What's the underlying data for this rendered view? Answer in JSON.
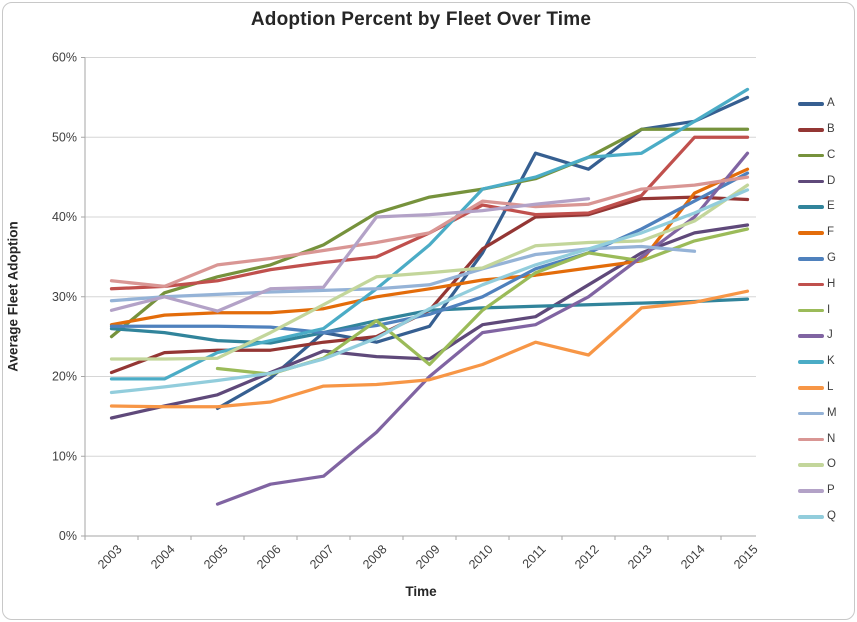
{
  "title": "Adoption Percent by Fleet Over Time",
  "axes": {
    "x_label": "Time",
    "y_label": "Average Fleet Adoption",
    "y_ticks": [
      "0%",
      "10%",
      "20%",
      "30%",
      "40%",
      "50%",
      "60%"
    ],
    "x_ticks": [
      "2003",
      "2004",
      "2005",
      "2006",
      "2007",
      "2008",
      "2009",
      "2010",
      "2011",
      "2012",
      "2013",
      "2014",
      "2015"
    ]
  },
  "styles": {
    "gridline_color": "#d6d6d6",
    "axis_line_color": "#a6a6a6",
    "tick_label_color": "#3f3f3f",
    "title_color": "#262626"
  },
  "chart_data": {
    "type": "line",
    "title": "Adoption Percent by Fleet Over Time",
    "xlabel": "Time",
    "ylabel": "Average Fleet Adoption",
    "x": [
      2003,
      2004,
      2005,
      2006,
      2007,
      2008,
      2009,
      2010,
      2011,
      2012,
      2013,
      2014,
      2015
    ],
    "ylim": [
      0,
      60
    ],
    "y_unit": "percent",
    "grid": "horizontal",
    "legend_position": "right",
    "series": [
      {
        "name": "A",
        "color": "#365F91",
        "values": [
          null,
          null,
          16,
          19.8,
          25.5,
          24.3,
          26.3,
          35.5,
          48,
          46,
          51,
          52,
          55
        ]
      },
      {
        "name": "B",
        "color": "#943634",
        "values": [
          20.5,
          23,
          23.3,
          23.3,
          24.3,
          25,
          28.3,
          36,
          40,
          40.3,
          42.3,
          42.5,
          42.2
        ]
      },
      {
        "name": "C",
        "color": "#76923C",
        "values": [
          25,
          30.5,
          32.5,
          34,
          36.5,
          40.5,
          42.5,
          43.5,
          44.8,
          47.5,
          51,
          51,
          51
        ]
      },
      {
        "name": "D",
        "color": "#5F497A",
        "values": [
          14.8,
          16.3,
          17.7,
          20.5,
          23.2,
          22.5,
          22.2,
          26.5,
          27.5,
          31.5,
          35.5,
          38,
          39
        ]
      },
      {
        "name": "E",
        "color": "#31849B",
        "values": [
          26,
          25.5,
          24.5,
          24.2,
          25.5,
          27,
          28.3,
          28.6,
          28.8,
          29,
          29.2,
          29.4,
          29.7
        ]
      },
      {
        "name": "F",
        "color": "#E36C0A",
        "values": [
          26.5,
          27.7,
          28,
          28,
          28.5,
          30,
          31,
          32.1,
          32.7,
          33.6,
          34.5,
          43,
          46
        ]
      },
      {
        "name": "G",
        "color": "#4F81BD",
        "values": [
          26.3,
          26.3,
          26.3,
          26.2,
          25.5,
          26.4,
          27.8,
          30,
          33.5,
          35.5,
          38.5,
          42,
          45.5
        ]
      },
      {
        "name": "H",
        "color": "#C0504D",
        "values": [
          31,
          31.3,
          32,
          33.4,
          34.3,
          35,
          38,
          41.5,
          40.3,
          40.5,
          42.7,
          50,
          50
        ]
      },
      {
        "name": "I",
        "color": "#9BBB59",
        "values": [
          null,
          null,
          21,
          20.3,
          22.3,
          27,
          21.5,
          28.3,
          33,
          35.5,
          34.5,
          37,
          38.5
        ]
      },
      {
        "name": "J",
        "color": "#8064A2",
        "values": [
          null,
          null,
          4,
          6.5,
          7.5,
          13,
          20,
          25.5,
          26.5,
          30,
          35,
          40,
          48
        ]
      },
      {
        "name": "K",
        "color": "#4BACC6",
        "values": [
          19.7,
          19.7,
          23,
          24.5,
          26,
          31,
          36.5,
          43.5,
          45,
          47.5,
          48,
          52,
          56
        ]
      },
      {
        "name": "L",
        "color": "#F79646",
        "values": [
          16.3,
          16.2,
          16.2,
          16.8,
          18.8,
          19,
          19.6,
          21.5,
          24.3,
          22.7,
          28.6,
          29.3,
          30.7
        ]
      },
      {
        "name": "M",
        "color": "#95B3D7",
        "values": [
          29.5,
          30,
          30.3,
          30.6,
          30.8,
          31,
          31.5,
          33.5,
          35.3,
          36,
          36.3,
          35.7,
          null
        ]
      },
      {
        "name": "N",
        "color": "#D99694",
        "values": [
          32,
          31.3,
          34,
          34.8,
          35.8,
          36.8,
          38,
          42,
          41.3,
          41.6,
          43.5,
          44,
          45
        ]
      },
      {
        "name": "O",
        "color": "#C3D69B",
        "values": [
          22.2,
          22.2,
          22.3,
          25.5,
          29,
          32.5,
          33,
          33.6,
          36.4,
          36.8,
          37,
          39.5,
          44
        ]
      },
      {
        "name": "P",
        "color": "#B3A2C7",
        "values": [
          28.3,
          30,
          28.2,
          31,
          31.2,
          40,
          40.3,
          40.8,
          41.6,
          42.3,
          null,
          null,
          null
        ]
      },
      {
        "name": "Q",
        "color": "#92CDDC",
        "values": [
          18,
          18.7,
          19.5,
          20.4,
          22.2,
          24.8,
          28.5,
          31.5,
          34,
          36,
          38,
          40.5,
          43.4
        ]
      }
    ]
  }
}
